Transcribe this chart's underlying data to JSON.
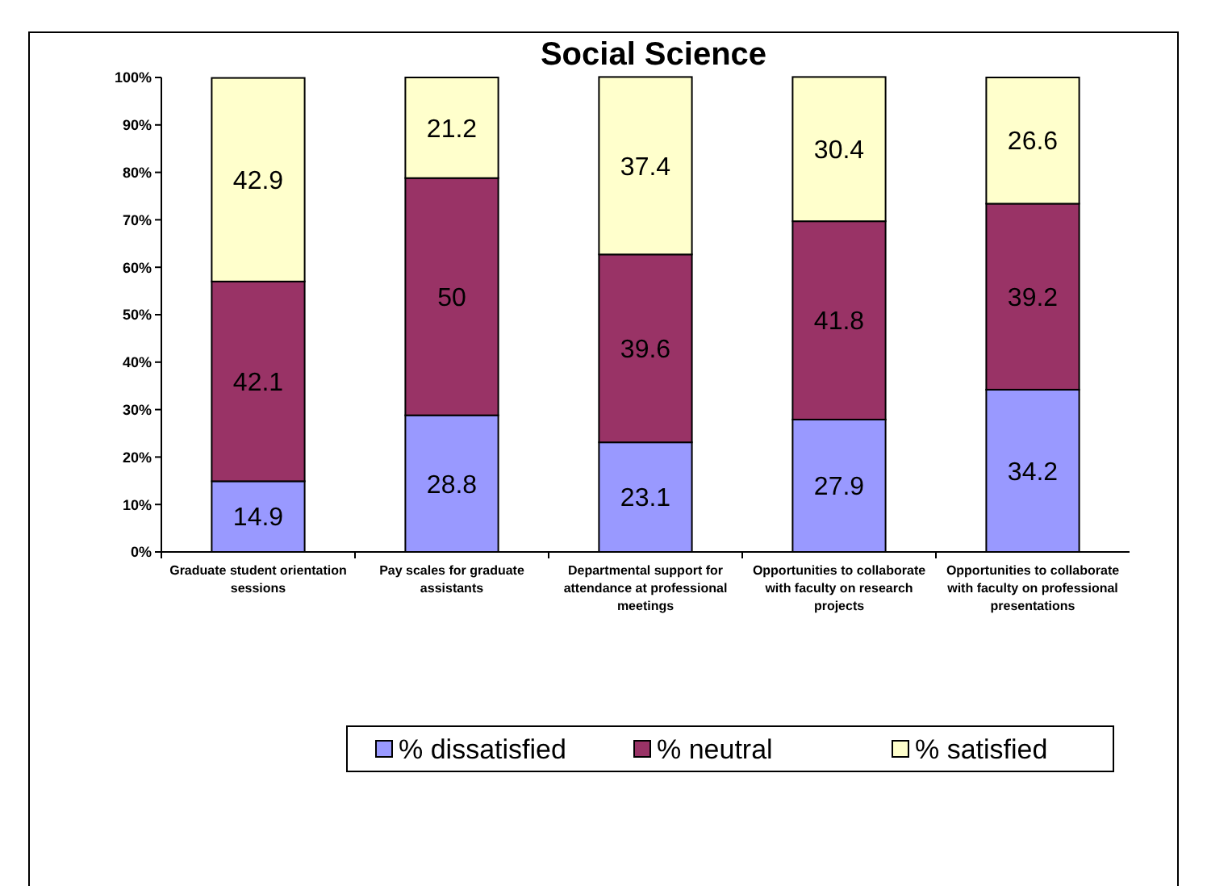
{
  "chart_data": {
    "type": "bar",
    "title": "Social Science",
    "stacked": true,
    "data_labels": true,
    "legend": "bottom",
    "grid": false,
    "categories": [
      "Graduate student orientation sessions",
      "Pay scales for graduate assistants",
      "Departmental support for attendance at professional meetings",
      "Opportunities to collaborate with faculty on research projects",
      "Opportunities to collaborate with faculty on professional presentations"
    ],
    "series": [
      {
        "name": "% dissatisfied",
        "color": "#9999ff",
        "values": [
          14.9,
          28.8,
          23.1,
          27.9,
          34.2
        ]
      },
      {
        "name": "% neutral",
        "color": "#993366",
        "values": [
          42.1,
          50,
          39.6,
          41.8,
          39.2
        ]
      },
      {
        "name": "% satisfied",
        "color": "#ffffcc",
        "values": [
          42.9,
          21.2,
          37.4,
          30.4,
          26.6
        ]
      }
    ],
    "ylim": [
      0,
      100
    ],
    "yticks": [
      {
        "value": 0,
        "label": "0%"
      },
      {
        "value": 10,
        "label": "10%"
      },
      {
        "value": 20,
        "label": "20%"
      },
      {
        "value": 30,
        "label": "30%"
      },
      {
        "value": 40,
        "label": "40%"
      },
      {
        "value": 50,
        "label": "50%"
      },
      {
        "value": 60,
        "label": "60%"
      },
      {
        "value": 70,
        "label": "70%"
      },
      {
        "value": 80,
        "label": "80%"
      },
      {
        "value": 90,
        "label": "90%"
      },
      {
        "value": 100,
        "label": "100%"
      }
    ]
  }
}
